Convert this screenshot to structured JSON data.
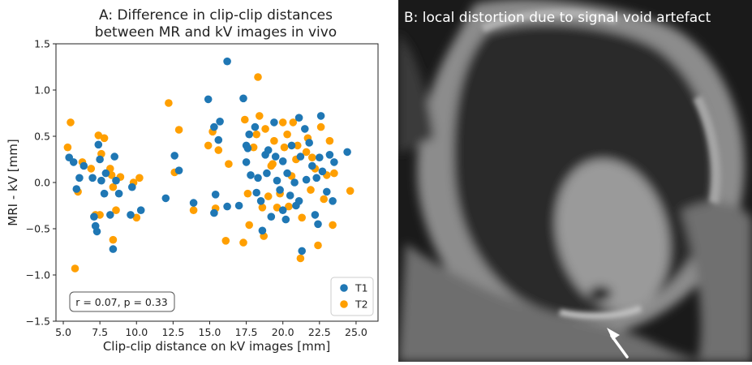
{
  "panel_a": {
    "title_line1": "A: Difference in clip-clip distances",
    "title_line2": "between MR and kV images in vivo",
    "annotation": "r = 0.07, p = 0.33"
  },
  "panel_b": {
    "title": "B: local distortion due to signal void artefact"
  },
  "colors": {
    "T1": "#1f77b4",
    "T2": "#ff9f00",
    "image_background": "#1a1a1a"
  },
  "icons": [
    "arrow-icon"
  ],
  "chart_data": {
    "type": "scatter",
    "title": "A: Difference in clip-clip distances between MR and kV images in vivo",
    "xlabel": "Clip-clip distance on kV images [mm]",
    "ylabel": "MRI - kV [mm]",
    "xlim": [
      4.5,
      26.5
    ],
    "ylim": [
      -1.5,
      1.5
    ],
    "xticks": [
      5.0,
      7.5,
      10.0,
      12.5,
      15.0,
      17.5,
      20.0,
      22.5,
      25.0
    ],
    "xtick_labels": [
      "5.0",
      "7.5",
      "10.0",
      "12.5",
      "15.0",
      "17.5",
      "20.0",
      "22.5",
      "25.0"
    ],
    "yticks": [
      -1.5,
      -1.0,
      -0.5,
      0.0,
      0.5,
      1.0,
      1.5
    ],
    "ytick_labels": [
      "−1.5",
      "−1.0",
      "−0.5",
      "0.0",
      "0.5",
      "1.0",
      "1.5"
    ],
    "grid": false,
    "legend_position": "lower-right",
    "series": [
      {
        "name": "T1",
        "points": [
          [
            5.4,
            0.27
          ],
          [
            5.7,
            0.22
          ],
          [
            5.9,
            -0.07
          ],
          [
            6.1,
            0.05
          ],
          [
            6.4,
            0.18
          ],
          [
            7.0,
            0.05
          ],
          [
            7.1,
            -0.37
          ],
          [
            7.2,
            -0.47
          ],
          [
            7.3,
            -0.53
          ],
          [
            7.4,
            0.41
          ],
          [
            7.5,
            0.25
          ],
          [
            7.6,
            0.02
          ],
          [
            7.8,
            -0.12
          ],
          [
            7.9,
            0.1
          ],
          [
            8.2,
            -0.35
          ],
          [
            8.4,
            -0.72
          ],
          [
            8.5,
            0.28
          ],
          [
            8.6,
            0.02
          ],
          [
            8.8,
            -0.12
          ],
          [
            9.6,
            -0.35
          ],
          [
            9.7,
            -0.05
          ],
          [
            10.3,
            -0.3
          ],
          [
            12.0,
            -0.17
          ],
          [
            12.6,
            0.29
          ],
          [
            12.9,
            0.13
          ],
          [
            13.9,
            -0.22
          ],
          [
            14.9,
            0.9
          ],
          [
            15.3,
            -0.33
          ],
          [
            15.3,
            0.6
          ],
          [
            15.4,
            -0.13
          ],
          [
            15.6,
            0.46
          ],
          [
            15.7,
            0.66
          ],
          [
            16.2,
            1.31
          ],
          [
            16.2,
            -0.26
          ],
          [
            17.0,
            -0.25
          ],
          [
            17.3,
            0.91
          ],
          [
            17.5,
            0.4
          ],
          [
            17.5,
            0.22
          ],
          [
            17.6,
            0.37
          ],
          [
            17.7,
            0.52
          ],
          [
            17.8,
            0.08
          ],
          [
            18.1,
            0.6
          ],
          [
            18.2,
            -0.11
          ],
          [
            18.3,
            0.05
          ],
          [
            18.5,
            -0.2
          ],
          [
            18.6,
            -0.52
          ],
          [
            18.8,
            0.3
          ],
          [
            18.9,
            0.1
          ],
          [
            19.0,
            0.35
          ],
          [
            19.2,
            -0.37
          ],
          [
            19.4,
            0.65
          ],
          [
            19.5,
            0.28
          ],
          [
            19.6,
            0.02
          ],
          [
            19.8,
            -0.08
          ],
          [
            20.0,
            -0.3
          ],
          [
            20.0,
            0.23
          ],
          [
            20.2,
            -0.4
          ],
          [
            20.3,
            0.1
          ],
          [
            20.5,
            -0.14
          ],
          [
            20.6,
            0.4
          ],
          [
            20.8,
            0.0
          ],
          [
            20.9,
            -0.25
          ],
          [
            21.1,
            0.7
          ],
          [
            21.1,
            -0.2
          ],
          [
            21.2,
            0.28
          ],
          [
            21.3,
            -0.74
          ],
          [
            21.5,
            0.58
          ],
          [
            21.6,
            0.03
          ],
          [
            21.8,
            0.43
          ],
          [
            22.0,
            0.18
          ],
          [
            22.2,
            -0.35
          ],
          [
            22.3,
            0.05
          ],
          [
            22.4,
            -0.45
          ],
          [
            22.5,
            0.27
          ],
          [
            22.6,
            0.72
          ],
          [
            22.7,
            0.12
          ],
          [
            23.0,
            -0.1
          ],
          [
            23.2,
            0.3
          ],
          [
            23.4,
            -0.2
          ],
          [
            23.5,
            0.22
          ],
          [
            24.4,
            0.33
          ]
        ]
      },
      {
        "name": "T2",
        "points": [
          [
            5.3,
            0.38
          ],
          [
            5.5,
            0.65
          ],
          [
            5.8,
            -0.93
          ],
          [
            6.0,
            -0.1
          ],
          [
            6.3,
            0.22
          ],
          [
            6.9,
            0.15
          ],
          [
            7.2,
            -0.35
          ],
          [
            7.4,
            0.51
          ],
          [
            7.5,
            -0.35
          ],
          [
            7.6,
            0.31
          ],
          [
            7.8,
            0.48
          ],
          [
            8.2,
            0.15
          ],
          [
            8.3,
            0.08
          ],
          [
            8.4,
            -0.62
          ],
          [
            8.4,
            -0.05
          ],
          [
            8.6,
            -0.3
          ],
          [
            8.9,
            0.06
          ],
          [
            9.8,
            0.0
          ],
          [
            10.0,
            -0.38
          ],
          [
            10.2,
            0.05
          ],
          [
            12.2,
            0.86
          ],
          [
            12.6,
            0.11
          ],
          [
            12.9,
            0.57
          ],
          [
            13.9,
            -0.3
          ],
          [
            14.9,
            0.4
          ],
          [
            15.2,
            0.55
          ],
          [
            15.4,
            -0.28
          ],
          [
            15.6,
            0.35
          ],
          [
            16.1,
            -0.63
          ],
          [
            16.3,
            0.2
          ],
          [
            17.3,
            -0.65
          ],
          [
            17.4,
            0.68
          ],
          [
            17.6,
            -0.12
          ],
          [
            17.7,
            -0.46
          ],
          [
            18.0,
            0.38
          ],
          [
            18.2,
            0.52
          ],
          [
            18.3,
            1.14
          ],
          [
            18.4,
            0.72
          ],
          [
            18.6,
            -0.27
          ],
          [
            18.7,
            -0.58
          ],
          [
            18.8,
            0.58
          ],
          [
            19.0,
            -0.15
          ],
          [
            19.2,
            0.18
          ],
          [
            19.3,
            0.2
          ],
          [
            19.4,
            0.45
          ],
          [
            19.6,
            -0.27
          ],
          [
            19.8,
            -0.12
          ],
          [
            20.0,
            0.65
          ],
          [
            20.1,
            0.38
          ],
          [
            20.3,
            0.52
          ],
          [
            20.4,
            -0.26
          ],
          [
            20.6,
            0.07
          ],
          [
            20.7,
            0.65
          ],
          [
            20.9,
            0.25
          ],
          [
            21.0,
            0.4
          ],
          [
            21.2,
            -0.82
          ],
          [
            21.3,
            -0.38
          ],
          [
            21.6,
            0.33
          ],
          [
            21.7,
            0.48
          ],
          [
            21.9,
            -0.08
          ],
          [
            22.0,
            0.27
          ],
          [
            22.2,
            0.15
          ],
          [
            22.4,
            -0.68
          ],
          [
            22.6,
            0.6
          ],
          [
            22.8,
            -0.18
          ],
          [
            23.0,
            0.08
          ],
          [
            23.2,
            0.45
          ],
          [
            23.4,
            -0.46
          ],
          [
            23.5,
            0.1
          ],
          [
            24.6,
            -0.09
          ]
        ]
      }
    ]
  }
}
